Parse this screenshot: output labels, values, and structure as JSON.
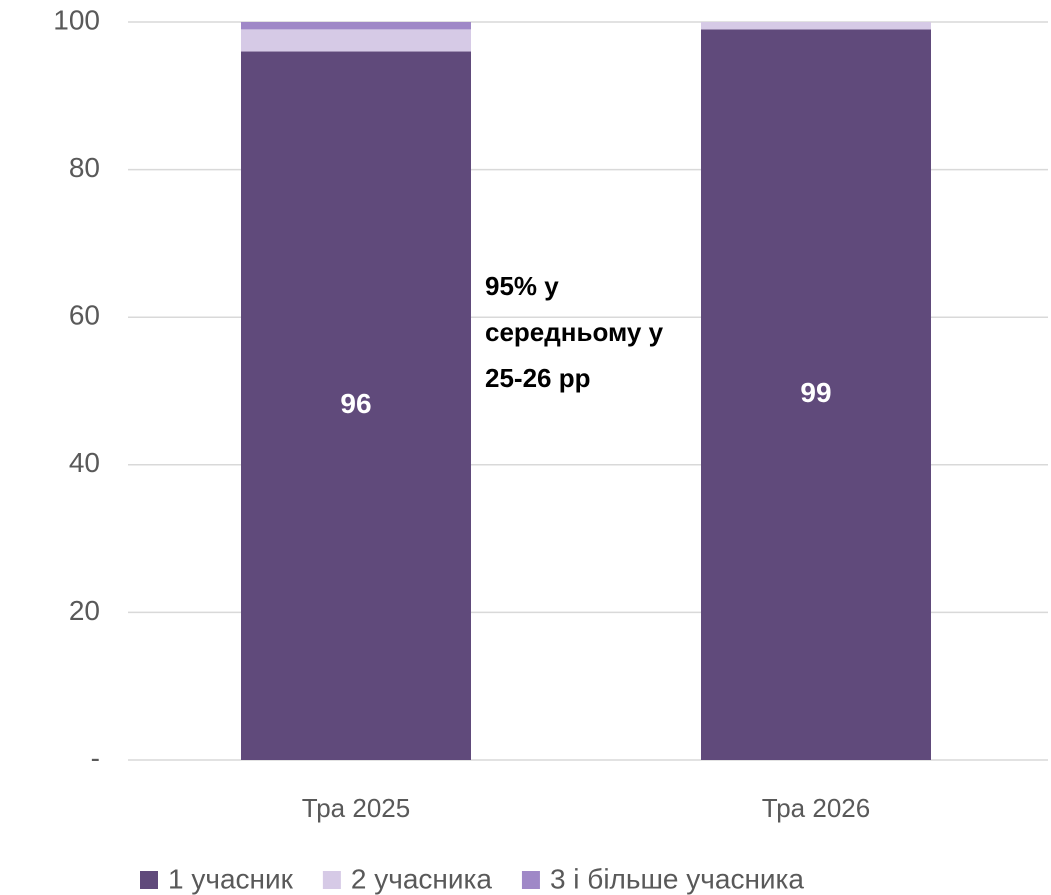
{
  "chart_data": {
    "type": "stacked_bar",
    "categories": [
      "Тра 2025",
      "Тра 2026"
    ],
    "series": [
      {
        "name": "1 учасник",
        "color": "#604a7b",
        "values": [
          96,
          99
        ],
        "labels": true
      },
      {
        "name": "2 учасника",
        "color": "#d6cae6",
        "values": [
          3,
          1
        ]
      },
      {
        "name": "3 і більше учасника",
        "color": "#9f88c7",
        "values": [
          1,
          0
        ]
      }
    ],
    "ylim": [
      0,
      100
    ],
    "yticks": [
      {
        "value": 0,
        "label": "-"
      },
      20,
      40,
      60,
      80,
      100
    ],
    "grid": true,
    "annotation": [
      "95% у",
      "середньому у",
      "25-26 рр"
    ],
    "legend": "bottom"
  }
}
